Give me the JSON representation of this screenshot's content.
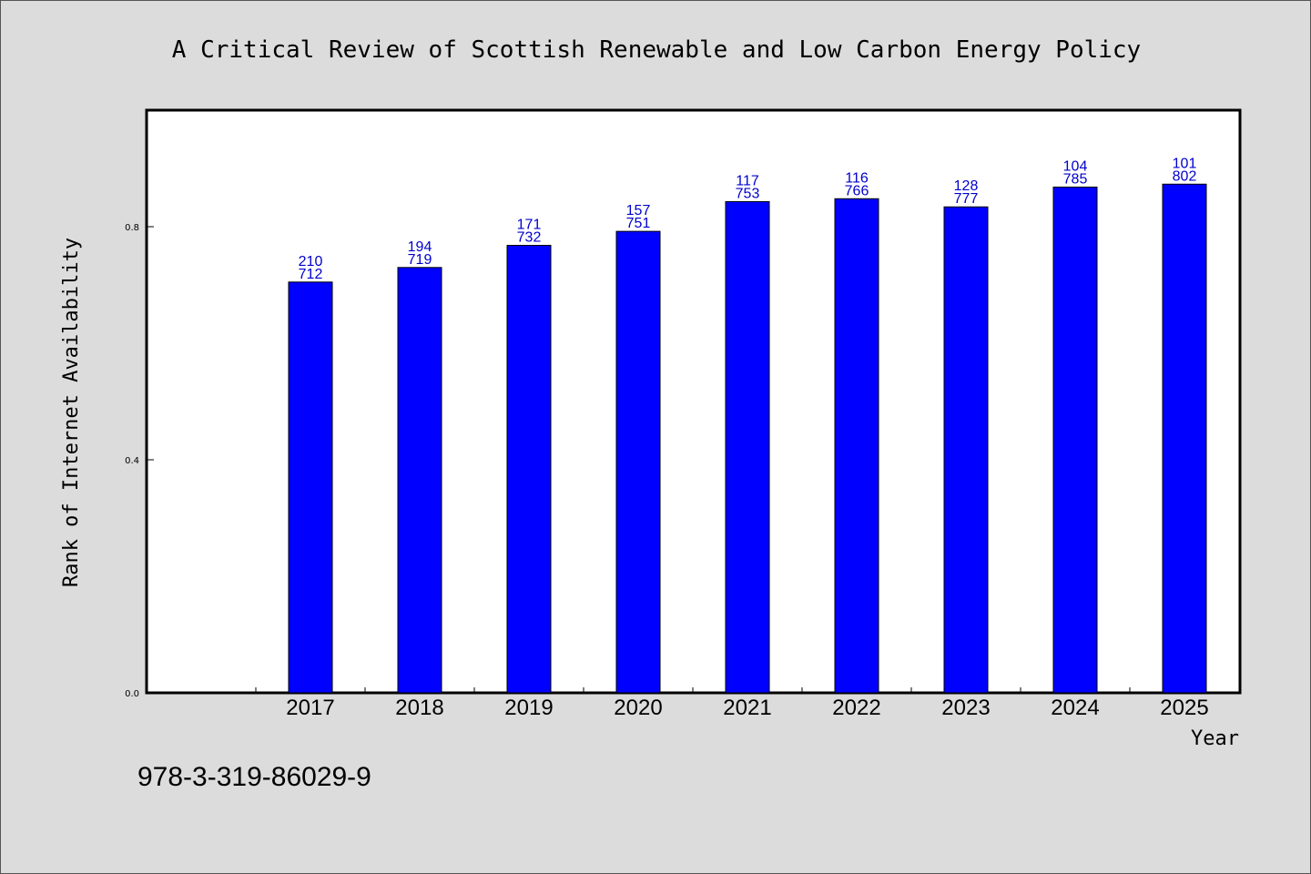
{
  "chart_data": {
    "type": "bar",
    "title": "A Critical Review of Scottish Renewable and Low Carbon Energy Policy",
    "xlabel": "Year",
    "ylabel": "Rank of Internet Availability",
    "categories": [
      "2017",
      "2018",
      "2019",
      "2020",
      "2021",
      "2022",
      "2023",
      "2024",
      "2025"
    ],
    "values": [
      0.705,
      0.73,
      0.768,
      0.792,
      0.843,
      0.848,
      0.834,
      0.868,
      0.873
    ],
    "labels_top": [
      "210",
      "194",
      "171",
      "157",
      "117",
      "116",
      "128",
      "104",
      "101"
    ],
    "labels_bottom": [
      "712",
      "719",
      "732",
      "751",
      "753",
      "766",
      "777",
      "785",
      "802"
    ],
    "ylim": [
      0.0,
      1.0
    ],
    "yticks": [
      0.0,
      0.4,
      0.8
    ],
    "ytick_labels": [
      "0.0",
      "0.4",
      "0.8"
    ],
    "grid": false,
    "bar_color": "#0000ff",
    "label_color": "#0000cc"
  },
  "footer": {
    "isbn": "978-3-319-86029-9"
  }
}
